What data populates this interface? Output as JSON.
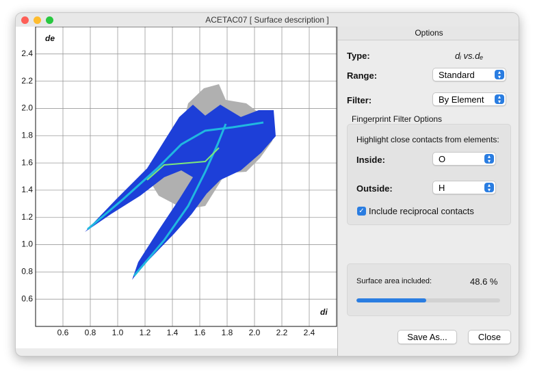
{
  "window": {
    "title": "ACETAC07 [ Surface description ]"
  },
  "chart_data": {
    "type": "fingerprint",
    "xlabel": "di",
    "ylabel": "de",
    "xlim": [
      0.4,
      2.6
    ],
    "ylim": [
      0.4,
      2.6
    ],
    "xticks": [
      0.6,
      0.8,
      {
        "value": 1,
        "label": "1.0"
      },
      1.2,
      1.4,
      1.6,
      1.8,
      {
        "value": 2,
        "label": "2.0"
      },
      2.2,
      2.4
    ],
    "yticks": [
      0.6,
      0.8,
      {
        "value": 1,
        "label": "1.0"
      },
      1.2,
      1.4,
      1.6,
      1.8,
      {
        "value": 2,
        "label": "2.0"
      },
      2.2,
      2.4
    ],
    "grid": true
  },
  "options": {
    "header": "Options",
    "type": {
      "label": "Type:",
      "value": "dᵢ vs.dₑ"
    },
    "range": {
      "label": "Range:",
      "value": "Standard"
    },
    "filter": {
      "label": "Filter:",
      "value": "By Element"
    },
    "group": {
      "title": "Fingerprint Filter Options",
      "hint": "Highlight close contacts from elements:",
      "inside": {
        "label": "Inside:",
        "value": "O"
      },
      "outside": {
        "label": "Outside:",
        "value": "H"
      },
      "reciprocal": "Include reciprocal contacts"
    },
    "surface": {
      "label": "Surface area included:",
      "percent": {
        "value": 48.6,
        "label": "48.6 %"
      }
    },
    "buttons": [
      "Save As...",
      "Close"
    ]
  }
}
